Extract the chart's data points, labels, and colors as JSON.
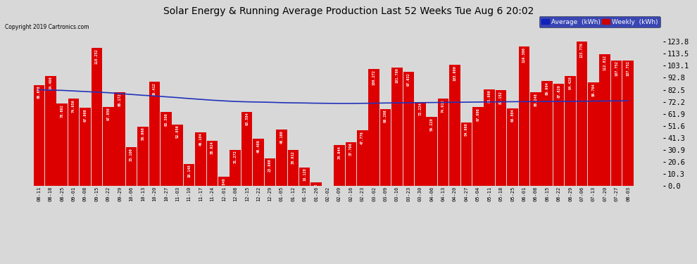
{
  "title": "Solar Energy & Running Average Production Last 52 Weeks Tue Aug 6 20:02",
  "copyright": "Copyright 2019 Cartronics.com",
  "ylabel_right_values": [
    123.8,
    113.5,
    103.1,
    92.8,
    82.5,
    72.2,
    61.9,
    51.6,
    41.3,
    30.9,
    20.6,
    10.3,
    0.0
  ],
  "bar_color": "#dd0000",
  "avg_line_color": "#2233bb",
  "background_color": "#d8d8d8",
  "grid_color": "#ffffff",
  "legend_avg_color": "#1122bb",
  "legend_weekly_color": "#cc0000",
  "categories": [
    "08-11",
    "08-18",
    "08-25",
    "09-01",
    "09-08",
    "09-15",
    "09-22",
    "09-29",
    "10-06",
    "10-13",
    "10-20",
    "10-27",
    "11-03",
    "11-10",
    "11-17",
    "11-24",
    "12-01",
    "12-08",
    "12-15",
    "12-22",
    "12-29",
    "01-05",
    "01-12",
    "01-19",
    "01-26",
    "02-02",
    "02-09",
    "02-16",
    "02-23",
    "03-02",
    "03-09",
    "03-16",
    "03-23",
    "03-30",
    "04-06",
    "04-13",
    "04-20",
    "04-27",
    "05-04",
    "05-11",
    "05-18",
    "05-25",
    "06-01",
    "06-08",
    "06-15",
    "06-22",
    "06-29",
    "07-06",
    "07-13",
    "07-20",
    "07-27",
    "08-03"
  ],
  "weekly_values": [
    86.668,
    94.496,
    70.692,
    74.956,
    67.008,
    118.252,
    67.856,
    80.172,
    33.1,
    50.96,
    89.412,
    63.308,
    52.956,
    19.148,
    46.104,
    38.924,
    7.84,
    31.272,
    63.584,
    40.408,
    23.9,
    48.16,
    30.912,
    16.128,
    3.012,
    0.0,
    34.944,
    37.796,
    47.776,
    100.272,
    66.208,
    101.78,
    97.632,
    72.224,
    59.22,
    74.912,
    103.9,
    54.668,
    67.608,
    83.0,
    82.152,
    66.804,
    119.3,
    80.248,
    89.904,
    87.62,
    94.42,
    123.776,
    88.704,
    112.812,
    107.752,
    107.752
  ],
  "avg_values": [
    82.5,
    82.2,
    82.0,
    81.5,
    81.0,
    80.5,
    80.0,
    79.3,
    78.5,
    77.8,
    77.2,
    76.5,
    75.8,
    75.0,
    74.3,
    73.6,
    73.0,
    72.5,
    72.2,
    72.0,
    71.8,
    71.5,
    71.3,
    71.2,
    71.0,
    70.9,
    70.8,
    70.8,
    70.9,
    71.0,
    71.2,
    71.3,
    71.4,
    71.5,
    71.6,
    71.7,
    71.8,
    71.9,
    72.0,
    72.1,
    72.2,
    72.3,
    72.4,
    72.4,
    72.5,
    72.5,
    72.6,
    72.7,
    72.8,
    72.9,
    73.0,
    73.1
  ],
  "ylim": [
    0.0,
    130.0
  ]
}
